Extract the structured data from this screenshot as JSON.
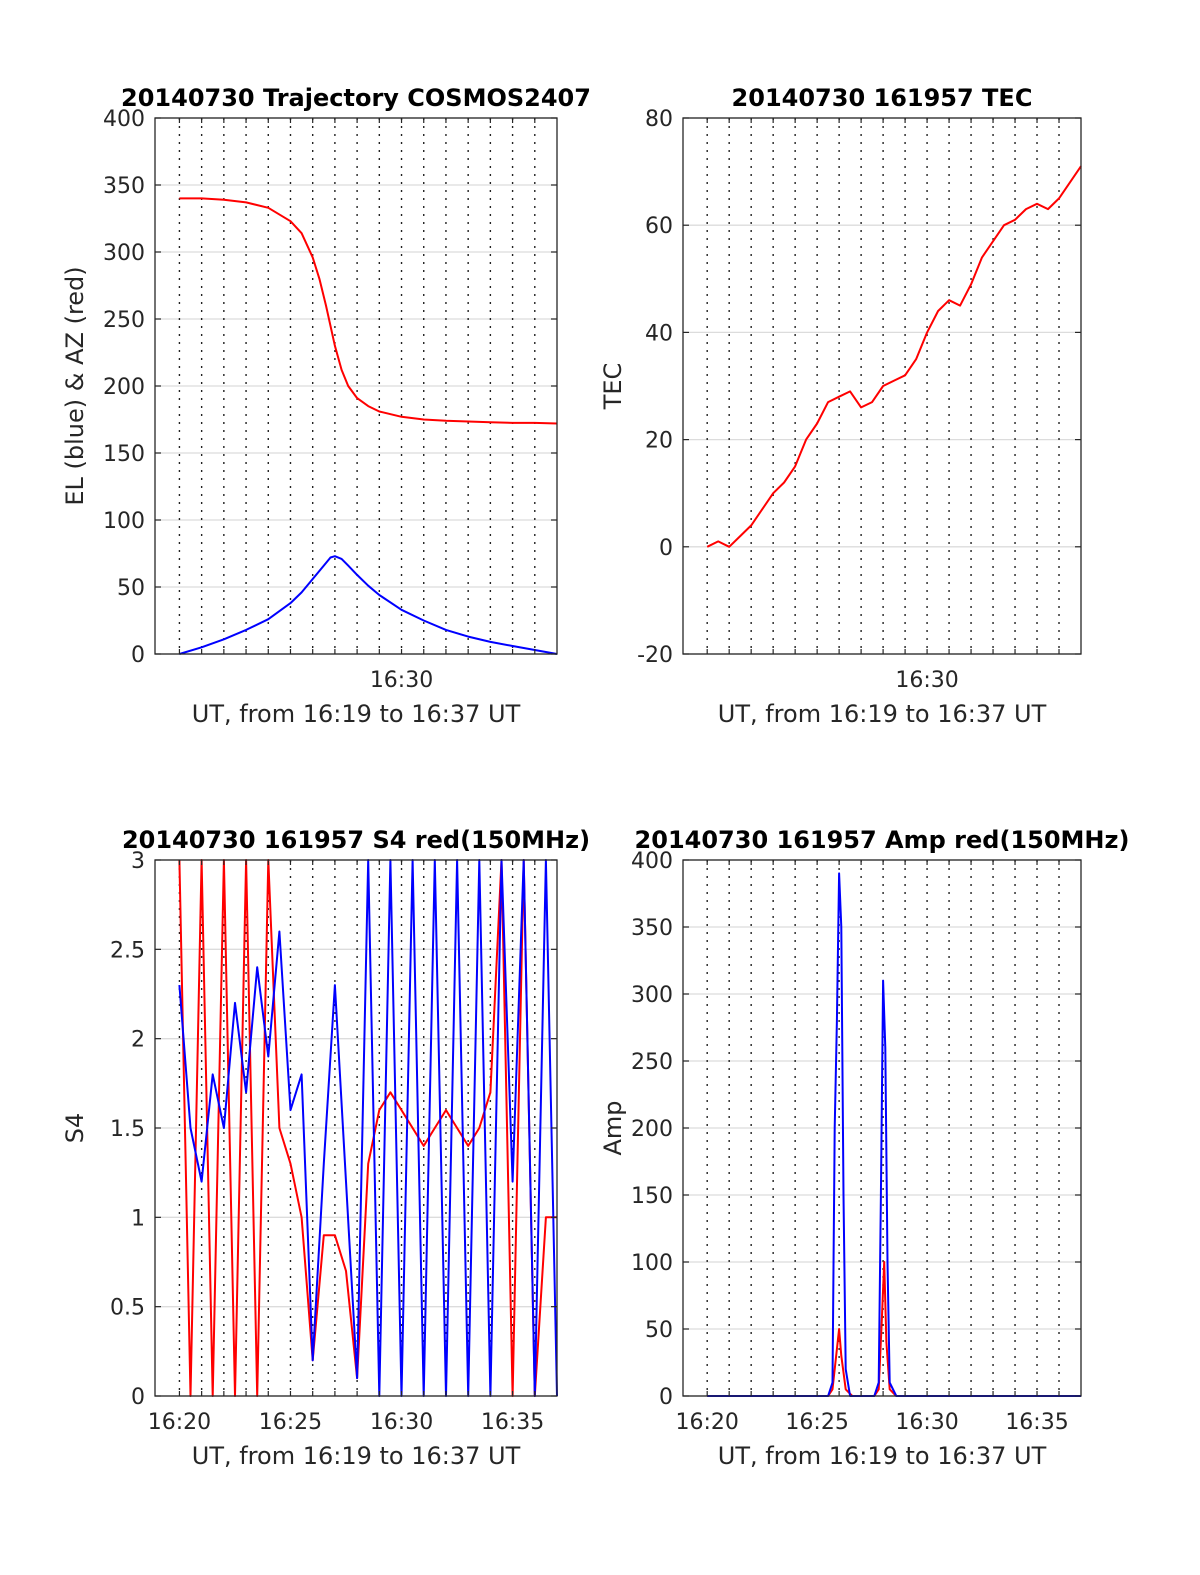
{
  "chart_data": [
    {
      "type": "line",
      "title": "20140730 Trajectory COSMOS2407",
      "xlabel": "UT, from 16:19 to 16:37 UT",
      "ylabel": "EL (blue) & AZ (red)",
      "xlim": [
        16.3,
        16.37
      ],
      "ylim": [
        0,
        400
      ],
      "yticks": [
        0,
        50,
        100,
        150,
        200,
        250,
        300,
        350,
        400
      ],
      "xtick_labels": [
        {
          "x": 16.5,
          "label": "16:30"
        }
      ],
      "grid": true,
      "series": [
        {
          "color": "#ff0000",
          "x": [
            20,
            21,
            22,
            23,
            24,
            25,
            25.5,
            26,
            26.3,
            26.6,
            27,
            27.3,
            27.6,
            28,
            28.5,
            29,
            30,
            31,
            32,
            33,
            34,
            35,
            36,
            37
          ],
          "y": [
            340,
            340,
            339,
            337,
            333,
            323,
            314,
            296,
            280,
            260,
            230,
            212,
            200,
            191,
            185,
            181,
            177,
            175,
            174,
            173.5,
            173,
            172.5,
            172.5,
            172
          ]
        },
        {
          "color": "#0000ff",
          "x": [
            20,
            21,
            22,
            23,
            24,
            25,
            25.5,
            26,
            26.5,
            26.8,
            27,
            27.3,
            27.6,
            28,
            28.5,
            29,
            30,
            31,
            32,
            33,
            34,
            35,
            36,
            37
          ],
          "y": [
            0,
            5,
            11,
            18,
            26,
            38,
            46,
            56,
            66,
            72,
            73,
            71,
            66,
            59,
            51,
            44,
            33,
            25,
            18,
            13,
            9,
            6,
            3,
            0
          ]
        }
      ]
    },
    {
      "type": "line",
      "title": "20140730 161957 TEC",
      "xlabel": "UT, from 16:19 to 16:37 UT",
      "ylabel": "TEC",
      "xlim": [
        16.3,
        16.37
      ],
      "ylim": [
        -20,
        80
      ],
      "yticks": [
        -20,
        0,
        20,
        40,
        60,
        80
      ],
      "xtick_labels": [
        {
          "x": 16.5,
          "label": "16:30"
        }
      ],
      "grid": true,
      "series": [
        {
          "color": "#ff0000",
          "x": [
            20,
            20.5,
            21,
            21.5,
            22,
            22.5,
            23,
            23.5,
            24,
            24.5,
            25,
            25.5,
            26,
            26.5,
            27,
            27.5,
            28,
            28.5,
            29,
            29.5,
            30,
            30.5,
            31,
            31.5,
            32,
            32.5,
            33,
            33.5,
            34,
            34.5,
            35,
            35.5,
            36,
            36.5,
            37
          ],
          "y": [
            0,
            1,
            0,
            2,
            4,
            7,
            10,
            12,
            15,
            20,
            23,
            27,
            28,
            29,
            26,
            27,
            30,
            31,
            32,
            35,
            40,
            44,
            46,
            45,
            49,
            54,
            57,
            60,
            61,
            63,
            64,
            63,
            65,
            68,
            71
          ]
        }
      ]
    },
    {
      "type": "line",
      "title": "20140730 161957 S4 red(150MHz)",
      "xlabel": "UT, from 16:19 to 16:37 UT",
      "ylabel": "S4",
      "xlim": [
        16.3,
        16.37
      ],
      "ylim": [
        0,
        3
      ],
      "yticks": [
        0,
        0.5,
        1,
        1.5,
        2,
        2.5,
        3
      ],
      "xtick_labels": [
        {
          "x": 20,
          "label": "16:20"
        },
        {
          "x": 25,
          "label": "16:25"
        },
        {
          "x": 30,
          "label": "16:30"
        },
        {
          "x": 35,
          "label": "16:35"
        }
      ],
      "grid": true,
      "series": [
        {
          "color": "#ff0000",
          "x": [
            20,
            20.5,
            21,
            21.5,
            22,
            22.5,
            23,
            23.5,
            24,
            24.5,
            25,
            25.5,
            26,
            26.5,
            27,
            27.5,
            28,
            28.5,
            29,
            29.5,
            30,
            30.5,
            31,
            31.5,
            32,
            32.5,
            33,
            33.5,
            34,
            34.5,
            35,
            35.5,
            36,
            36.5,
            37
          ],
          "y": [
            3,
            0,
            3,
            0,
            3,
            0,
            3,
            0,
            3,
            1.5,
            1.3,
            1.0,
            0.2,
            0.9,
            0.9,
            0.7,
            0.1,
            1.3,
            1.6,
            1.7,
            1.6,
            1.5,
            1.4,
            1.5,
            1.6,
            1.5,
            1.4,
            1.5,
            1.7,
            3,
            0,
            3,
            0,
            1.0,
            1.0
          ]
        },
        {
          "color": "#0000ff",
          "x": [
            20,
            20.5,
            21,
            21.5,
            22,
            22.5,
            23,
            23.5,
            24,
            24.5,
            25,
            25.5,
            26,
            26.5,
            27,
            27.5,
            28,
            28.5,
            29,
            29.5,
            30,
            30.5,
            31,
            31.5,
            32,
            32.5,
            33,
            33.5,
            34,
            34.5,
            35,
            35.5,
            36,
            36.5,
            37
          ],
          "y": [
            2.3,
            1.5,
            1.2,
            1.8,
            1.5,
            2.2,
            1.7,
            2.4,
            1.9,
            2.6,
            1.6,
            1.8,
            0.2,
            1.3,
            2.3,
            1.2,
            0.1,
            3,
            0,
            3,
            0,
            3,
            0,
            3,
            0,
            3,
            0,
            3,
            0,
            3,
            1.2,
            3,
            0,
            3,
            0
          ]
        }
      ]
    },
    {
      "type": "line",
      "title": "20140730 161957 Amp red(150MHz)",
      "xlabel": "UT, from 16:19 to 16:37 UT",
      "ylabel": "Amp",
      "xlim": [
        16.3,
        16.37
      ],
      "ylim": [
        0,
        400
      ],
      "yticks": [
        0,
        50,
        100,
        150,
        200,
        250,
        300,
        350,
        400
      ],
      "xtick_labels": [
        {
          "x": 20,
          "label": "16:20"
        },
        {
          "x": 25,
          "label": "16:25"
        },
        {
          "x": 30,
          "label": "16:30"
        },
        {
          "x": 35,
          "label": "16:35"
        }
      ],
      "grid": true,
      "series": [
        {
          "color": "#ff0000",
          "x": [
            20,
            25,
            25.5,
            25.7,
            25.9,
            26.0,
            26.1,
            26.3,
            26.6,
            27,
            27.6,
            27.8,
            27.95,
            28.05,
            28.15,
            28.3,
            28.6,
            30,
            37
          ],
          "y": [
            0,
            0,
            0,
            5,
            35,
            50,
            30,
            5,
            0,
            0,
            0,
            5,
            60,
            100,
            40,
            5,
            0,
            0,
            0
          ]
        },
        {
          "color": "#0000ff",
          "x": [
            20,
            25,
            25.5,
            25.7,
            25.8,
            25.9,
            26.0,
            26.1,
            26.2,
            26.3,
            26.5,
            27,
            27.6,
            27.8,
            27.9,
            28.0,
            28.1,
            28.2,
            28.3,
            28.6,
            30,
            37
          ],
          "y": [
            0,
            0,
            0,
            10,
            200,
            280,
            390,
            350,
            150,
            20,
            0,
            0,
            0,
            10,
            150,
            310,
            260,
            100,
            10,
            0,
            0,
            0
          ]
        }
      ]
    }
  ]
}
